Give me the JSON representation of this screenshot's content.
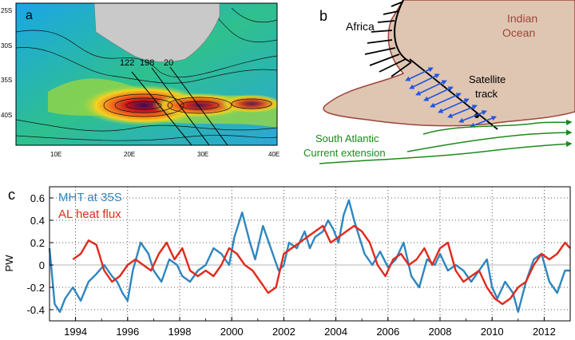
{
  "panel_a": {
    "label": "a",
    "lat_ticks": [
      "25S",
      "30S",
      "35S",
      "40S"
    ],
    "lon_ticks": [
      "10E",
      "20E",
      "30E",
      "40E"
    ],
    "track_labels": [
      "122",
      "198",
      "20"
    ]
  },
  "panel_b": {
    "label": "b",
    "africa": "Africa",
    "indian_ocean": [
      "Indian",
      "Ocean"
    ],
    "satellite_track": [
      "Satellite",
      "track"
    ],
    "current": [
      "South Atlantic",
      "Current extension"
    ]
  },
  "chart_data": {
    "type": "line",
    "panel_label": "c",
    "ylabel": "PW",
    "xlabel": "",
    "xlim": [
      1993,
      2013
    ],
    "ylim": [
      -0.5,
      0.7
    ],
    "yticks": [
      -0.4,
      -0.2,
      0,
      0.2,
      0.4,
      0.6
    ],
    "ytick_labels": [
      "-0.4",
      "-0.2",
      "0",
      "0.2",
      "0.4",
      "0.6"
    ],
    "xticks": [
      1994,
      1996,
      1998,
      2000,
      2002,
      2004,
      2006,
      2008,
      2010,
      2012
    ],
    "xtick_labels": [
      "1994",
      "1996",
      "1998",
      "2000",
      "2002",
      "2004",
      "2006",
      "2008",
      "2010",
      "2012"
    ],
    "grid": true,
    "legend_position": "top-left",
    "series": [
      {
        "name": "MHT at 35S",
        "color": "#2f86c0",
        "x": [
          1993.0,
          1993.2,
          1993.4,
          1993.6,
          1993.9,
          1994.2,
          1994.5,
          1994.8,
          1995.1,
          1995.4,
          1995.6,
          1995.8,
          1996.0,
          1996.2,
          1996.5,
          1996.8,
          1997.0,
          1997.3,
          1997.6,
          1997.9,
          1998.1,
          1998.4,
          1998.7,
          1999.0,
          1999.3,
          1999.6,
          1999.9,
          2000.1,
          2000.4,
          2000.7,
          2000.9,
          2001.2,
          2001.5,
          2001.8,
          2002.0,
          2002.2,
          2002.5,
          2002.8,
          2003.0,
          2003.2,
          2003.5,
          2003.7,
          2003.9,
          2004.1,
          2004.3,
          2004.5,
          2004.7,
          2004.9,
          2005.1,
          2005.4,
          2005.7,
          2006.0,
          2006.3,
          2006.6,
          2006.9,
          2007.2,
          2007.5,
          2007.8,
          2008.0,
          2008.3,
          2008.6,
          2008.9,
          2009.2,
          2009.5,
          2009.8,
          2010.0,
          2010.2,
          2010.5,
          2010.8,
          2011.0,
          2011.3,
          2011.6,
          2011.9,
          2012.2,
          2012.5,
          2012.8,
          2013.0
        ],
        "y": [
          0.15,
          -0.35,
          -0.42,
          -0.3,
          -0.2,
          -0.32,
          -0.15,
          -0.08,
          0.0,
          -0.1,
          -0.15,
          -0.25,
          -0.32,
          -0.05,
          0.2,
          0.1,
          -0.05,
          -0.15,
          0.05,
          0.0,
          -0.1,
          -0.15,
          -0.05,
          0.0,
          0.15,
          0.1,
          0.0,
          0.25,
          0.47,
          0.2,
          0.05,
          0.35,
          0.15,
          -0.05,
          0.0,
          0.2,
          0.15,
          0.3,
          0.15,
          0.25,
          0.3,
          0.4,
          0.32,
          0.2,
          0.45,
          0.58,
          0.4,
          0.25,
          0.1,
          0.0,
          0.12,
          -0.02,
          0.05,
          0.2,
          -0.1,
          -0.2,
          0.05,
          0.0,
          0.1,
          -0.05,
          0.0,
          -0.05,
          -0.15,
          -0.05,
          0.05,
          -0.2,
          -0.3,
          -0.15,
          -0.25,
          -0.42,
          -0.15,
          0.05,
          0.1,
          -0.15,
          -0.25,
          -0.05,
          -0.05
        ]
      },
      {
        "name": "AL heat flux",
        "color": "#e02a1c",
        "x": [
          1993.9,
          1994.2,
          1994.5,
          1994.8,
          1995.1,
          1995.4,
          1995.7,
          1996.0,
          1996.3,
          1996.6,
          1996.9,
          1997.2,
          1997.5,
          1997.8,
          1998.1,
          1998.4,
          1998.7,
          1999.0,
          1999.3,
          1999.6,
          1999.9,
          2000.2,
          2000.5,
          2000.8,
          2001.1,
          2001.4,
          2001.7,
          2002.0,
          2002.3,
          2002.6,
          2002.9,
          2003.2,
          2003.5,
          2003.8,
          2004.1,
          2004.4,
          2004.7,
          2005.0,
          2005.3,
          2005.6,
          2005.9,
          2006.2,
          2006.5,
          2006.8,
          2007.1,
          2007.4,
          2007.7,
          2008.0,
          2008.3,
          2008.6,
          2008.9,
          2009.2,
          2009.5,
          2009.8,
          2010.1,
          2010.4,
          2010.7,
          2011.0,
          2011.3,
          2011.6,
          2011.9,
          2012.2,
          2012.5,
          2012.8,
          2013.0
        ],
        "y": [
          0.05,
          0.1,
          0.22,
          0.18,
          -0.05,
          -0.15,
          -0.1,
          0.0,
          0.05,
          0.0,
          -0.05,
          0.1,
          0.2,
          0.05,
          0.15,
          -0.05,
          -0.1,
          -0.05,
          -0.1,
          0.0,
          0.15,
          0.1,
          0.0,
          -0.05,
          -0.15,
          -0.25,
          -0.2,
          0.1,
          0.15,
          0.2,
          0.25,
          0.3,
          0.35,
          0.2,
          0.25,
          0.3,
          0.35,
          0.3,
          0.2,
          0.0,
          -0.1,
          0.05,
          0.1,
          0.0,
          0.05,
          0.15,
          0.0,
          0.15,
          0.2,
          -0.05,
          -0.15,
          -0.1,
          -0.05,
          -0.2,
          -0.3,
          -0.35,
          -0.3,
          -0.2,
          -0.15,
          0.0,
          0.1,
          0.05,
          0.1,
          0.2,
          0.15
        ]
      }
    ]
  }
}
